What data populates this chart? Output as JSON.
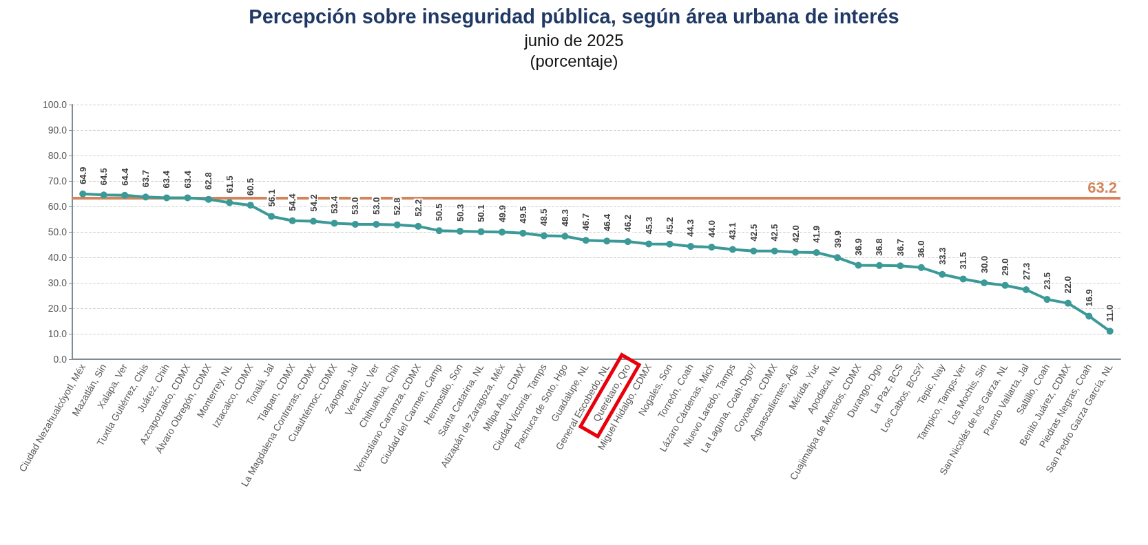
{
  "chart_data": {
    "type": "line",
    "title": "Percepción sobre inseguridad pública, según área urbana de interés",
    "subtitle": "junio de 2025",
    "annotations": [
      "(porcentaje)"
    ],
    "categories": [
      "Ciudad Nezahualcóyotl, Méx",
      "Mazatlán, Sin",
      "Xalapa, Ver",
      "Tuxtla Gutiérrez, Chis",
      "Juárez, Chih",
      "Azcapotzalco, CDMX",
      "Álvaro Obregón, CDMX",
      "Monterrey, NL",
      "Iztacalco, CDMX",
      "Tonalá, Jal",
      "Tlalpan, CDMX",
      "La Magdalena Contreras, CDMX",
      "Cuauhtémoc, CDMX",
      "Zapopan, Jal",
      "Veracruz, Ver",
      "Chihuahua, Chih",
      "Venustiano Carranza, CDMX",
      "Ciudad del Carmen, Camp",
      "Hermosillo, Son",
      "Santa Catarina, NL",
      "Atizapán de Zaragoza, Méx",
      "Milpa Alta, CDMX",
      "Ciudad Victoria, Tamps",
      "Pachuca de Soto, Hgo",
      "Guadalupe, NL",
      "General Escobedo, NL",
      "Querétaro, Qro",
      "Miguel Hidalgo, CDMX",
      "Nogales, Son",
      "Torreón, Coah",
      "Lázaro Cárdenas, Mich",
      "Nuevo Laredo, Tamps",
      "La Laguna, Coah-Dgo¹/",
      "Coyoacán, CDMX",
      "Aguascalientes, Ags",
      "Mérida, Yuc",
      "Apodaca, NL",
      "Cuajimalpa de Morelos, CDMX",
      "Durango, Dgo",
      "La Paz, BCS",
      "Los Cabos, BCS²/",
      "Tepic, Nay",
      "Tampico, Tamps-Ver",
      "Los Mochis, Sin",
      "San Nicolás de los Garza, NL",
      "Puerto Vallarta, Jal",
      "Saltillo, Coah",
      "Benito Juárez, CDMX",
      "Piedras Negras, Coah",
      "San Pedro Garza García, NL"
    ],
    "series": [
      {
        "color": "#3b9a97",
        "values": [
          64.9,
          64.5,
          64.4,
          63.7,
          63.4,
          63.4,
          62.8,
          61.5,
          60.5,
          56.1,
          54.4,
          54.2,
          53.4,
          53.0,
          53.0,
          52.8,
          52.2,
          50.5,
          50.3,
          50.1,
          49.9,
          49.5,
          48.5,
          48.3,
          46.7,
          46.4,
          46.2,
          45.3,
          45.2,
          44.3,
          44.0,
          43.1,
          42.5,
          42.5,
          42.0,
          41.9,
          39.9,
          36.9,
          36.8,
          36.7,
          36.0,
          33.3,
          31.5,
          30.0,
          29.0,
          27.3,
          23.5,
          22.0,
          16.9,
          11.0
        ]
      }
    ],
    "ylim": [
      0,
      100
    ],
    "yticks": [
      {
        "value": 0,
        "label": "0.0"
      },
      {
        "value": 10,
        "label": "10.0"
      },
      {
        "value": 20,
        "label": "20.0"
      },
      {
        "value": 30,
        "label": "30.0"
      },
      {
        "value": 40,
        "label": "40.0"
      },
      {
        "value": 50,
        "label": "50.0"
      },
      {
        "value": 60,
        "label": "60.0"
      },
      {
        "value": 70,
        "label": "70.0"
      },
      {
        "value": 80,
        "label": "80.0"
      },
      {
        "value": 90,
        "label": "90.0"
      },
      {
        "value": 100,
        "label": "100.0"
      }
    ],
    "ref_lines": [
      {
        "axis": "y",
        "value": 63.2,
        "label": "63.2",
        "color": "#d4845a"
      }
    ],
    "value_labels": [
      "64.9",
      "64.5",
      "64.4",
      "63.7",
      "63.4",
      "63.4",
      "62.8",
      "61.5",
      "60.5",
      "56.1",
      "54.4",
      "54.2",
      "53.4",
      "53.0",
      "53.0",
      "52.8",
      "52.2",
      "50.5",
      "50.3",
      "50.1",
      "49.9",
      "49.5",
      "48.5",
      "48.3",
      "46.7",
      "46.4",
      "46.2",
      "45.3",
      "45.2",
      "44.3",
      "44.0",
      "43.1",
      "42.5",
      "42.5",
      "42.0",
      "41.9",
      "39.9",
      "36.9",
      "36.8",
      "36.7",
      "36.0",
      "33.3",
      "31.5",
      "30.0",
      "29.0",
      "27.3",
      "23.5",
      "22.0",
      "16.9",
      "11.0"
    ],
    "grid": "y",
    "marker": "circle",
    "line_style": "solid"
  }
}
